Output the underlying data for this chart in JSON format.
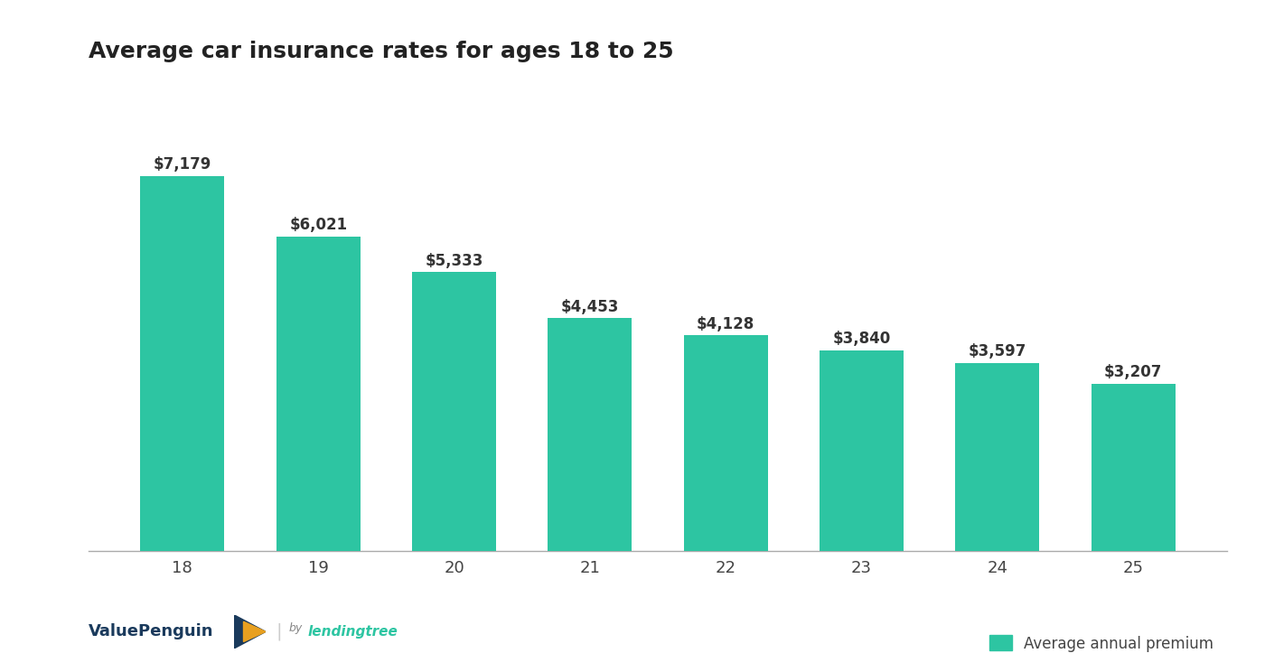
{
  "title": "Average car insurance rates for ages 18 to 25",
  "categories": [
    "18",
    "19",
    "20",
    "21",
    "22",
    "23",
    "24",
    "25"
  ],
  "values": [
    7179,
    6021,
    5333,
    4453,
    4128,
    3840,
    3597,
    3207
  ],
  "labels": [
    "$7,179",
    "$6,021",
    "$5,333",
    "$4,453",
    "$4,128",
    "$3,840",
    "$3,597",
    "$3,207"
  ],
  "bar_color": "#2DC5A2",
  "background_color": "#ffffff",
  "title_fontsize": 18,
  "label_fontsize": 12,
  "tick_fontsize": 13,
  "legend_label": "Average annual premium",
  "ylim": [
    0,
    9000
  ]
}
